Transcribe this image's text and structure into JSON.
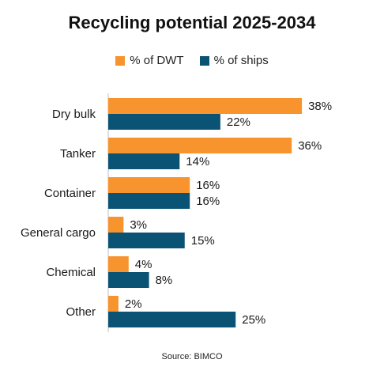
{
  "chart_data": {
    "type": "bar",
    "orientation": "horizontal",
    "title": "Recycling potential 2025-2034",
    "categories": [
      "Dry bulk",
      "Tanker",
      "Container",
      "General cargo",
      "Chemical",
      "Other"
    ],
    "series": [
      {
        "name": "% of DWT",
        "color": "#F7942D",
        "values": [
          38,
          36,
          16,
          3,
          4,
          2
        ]
      },
      {
        "name": "% of ships",
        "color": "#0B5375",
        "values": [
          22,
          14,
          16,
          15,
          8,
          25
        ]
      }
    ],
    "value_suffix": "%",
    "xlim": [
      0,
      40
    ],
    "grid": false,
    "legend_position": "top"
  },
  "source": "Source: BIMCO"
}
